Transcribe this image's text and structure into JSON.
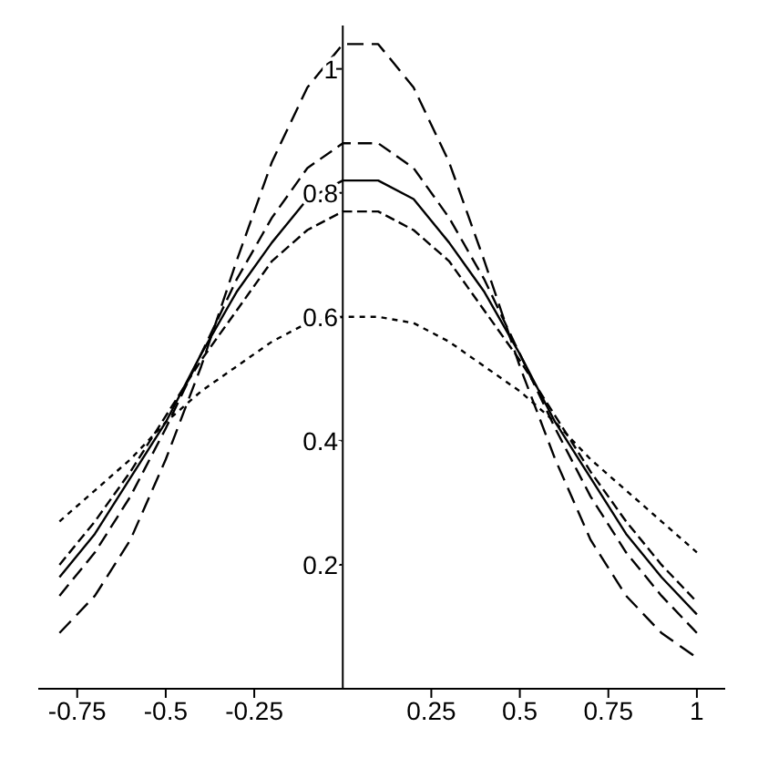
{
  "chart_data": {
    "type": "line",
    "x": [
      -0.8,
      -0.7,
      -0.6,
      -0.5,
      -0.4,
      -0.3,
      -0.2,
      -0.1,
      0,
      0.1,
      0.2,
      0.3,
      0.4,
      0.5,
      0.6,
      0.7,
      0.8,
      0.9,
      1
    ],
    "series": [
      {
        "color": "#000000",
        "line_style": "dashed",
        "values": [
          0.09,
          0.15,
          0.24,
          0.37,
          0.52,
          0.69,
          0.85,
          0.97,
          1.04,
          1.04,
          0.97,
          0.85,
          0.69,
          0.52,
          0.37,
          0.24,
          0.15,
          0.09,
          0.05
        ]
      },
      {
        "color": "#000000",
        "line_style": "dashed",
        "values": [
          0.15,
          0.22,
          0.31,
          0.42,
          0.54,
          0.66,
          0.76,
          0.84,
          0.88,
          0.88,
          0.84,
          0.76,
          0.66,
          0.54,
          0.42,
          0.31,
          0.22,
          0.15,
          0.09
        ]
      },
      {
        "color": "#000000",
        "line_style": "solid",
        "values": [
          0.18,
          0.25,
          0.34,
          0.43,
          0.54,
          0.64,
          0.72,
          0.79,
          0.82,
          0.82,
          0.79,
          0.72,
          0.64,
          0.54,
          0.43,
          0.34,
          0.25,
          0.18,
          0.12
        ]
      },
      {
        "color": "#000000",
        "line_style": "dashed",
        "values": [
          0.2,
          0.27,
          0.35,
          0.44,
          0.53,
          0.61,
          0.69,
          0.74,
          0.77,
          0.77,
          0.74,
          0.69,
          0.61,
          0.53,
          0.44,
          0.35,
          0.27,
          0.2,
          0.14
        ]
      },
      {
        "color": "#000000",
        "line_style": "dotted",
        "values": [
          0.27,
          0.32,
          0.37,
          0.43,
          0.48,
          0.52,
          0.56,
          0.59,
          0.6,
          0.6,
          0.59,
          0.56,
          0.52,
          0.48,
          0.43,
          0.37,
          0.32,
          0.27,
          0.22
        ]
      }
    ],
    "xlim": [
      -0.86,
      1.08
    ],
    "ylim": [
      0,
      1.07
    ],
    "xticks": [
      {
        "value": -0.75,
        "label": "-0.75"
      },
      {
        "value": -0.5,
        "label": "-0.5"
      },
      {
        "value": -0.25,
        "label": "-0.25"
      },
      {
        "value": 0.25,
        "label": "0.25"
      },
      {
        "value": 0.5,
        "label": "0.5"
      },
      {
        "value": 0.75,
        "label": "0.75"
      },
      1
    ],
    "yticks": [
      0.2,
      0.4,
      0.6,
      0.8,
      1
    ],
    "marker": "none"
  }
}
